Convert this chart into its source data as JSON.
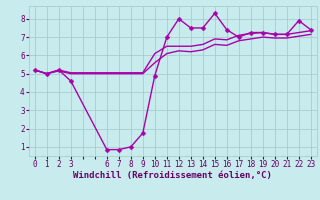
{
  "background_color": "#c8ecee",
  "grid_color": "#a0c8c8",
  "line_color": "#aa00aa",
  "xlabel": "Windchill (Refroidissement éolien,°C)",
  "xlabel_color": "#660066",
  "tick_color": "#660066",
  "ylim": [
    0.5,
    8.7
  ],
  "xlim": [
    -0.5,
    23.5
  ],
  "yticks": [
    1,
    2,
    3,
    4,
    5,
    6,
    7,
    8
  ],
  "xticks": [
    0,
    1,
    2,
    3,
    4,
    5,
    6,
    7,
    8,
    9,
    10,
    11,
    12,
    13,
    14,
    15,
    16,
    17,
    18,
    19,
    20,
    21,
    22,
    23
  ],
  "xtick_labels": [
    "0",
    "1",
    "2",
    "3",
    "",
    "",
    "6",
    "7",
    "8",
    "9",
    "10",
    "11",
    "12",
    "13",
    "14",
    "15",
    "16",
    "17",
    "18",
    "19",
    "20",
    "21",
    "22",
    "23"
  ],
  "jagged_x": [
    0,
    1,
    2,
    3,
    6,
    7,
    8,
    9,
    10,
    11,
    12,
    13,
    14,
    15,
    16,
    17,
    18,
    19,
    20,
    21,
    22,
    23
  ],
  "jagged_y": [
    5.2,
    5.0,
    5.2,
    4.6,
    0.85,
    0.85,
    1.0,
    1.75,
    4.9,
    7.0,
    8.0,
    7.5,
    7.5,
    8.3,
    7.4,
    7.0,
    7.25,
    7.25,
    7.15,
    7.15,
    7.9,
    7.4
  ],
  "upper_x": [
    0,
    1,
    2,
    3,
    6,
    7,
    8,
    9,
    10,
    11,
    12,
    13,
    14,
    15,
    16,
    17,
    18,
    19,
    20,
    21,
    22,
    23
  ],
  "upper_y": [
    5.2,
    5.0,
    5.2,
    5.05,
    5.05,
    5.05,
    5.05,
    5.05,
    6.1,
    6.5,
    6.5,
    6.5,
    6.6,
    6.9,
    6.85,
    7.1,
    7.2,
    7.25,
    7.15,
    7.15,
    7.25,
    7.35
  ],
  "lower_x": [
    0,
    1,
    2,
    3,
    6,
    7,
    8,
    9,
    10,
    11,
    12,
    13,
    14,
    15,
    16,
    17,
    18,
    19,
    20,
    21,
    22,
    23
  ],
  "lower_y": [
    5.2,
    5.0,
    5.15,
    5.0,
    5.0,
    5.0,
    5.0,
    5.0,
    5.6,
    6.1,
    6.25,
    6.2,
    6.3,
    6.6,
    6.55,
    6.8,
    6.9,
    7.0,
    6.95,
    6.95,
    7.05,
    7.15
  ],
  "marker_size": 2.5,
  "line_width": 1.0,
  "xlabel_fontsize": 6.5,
  "tick_fontsize": 5.5
}
